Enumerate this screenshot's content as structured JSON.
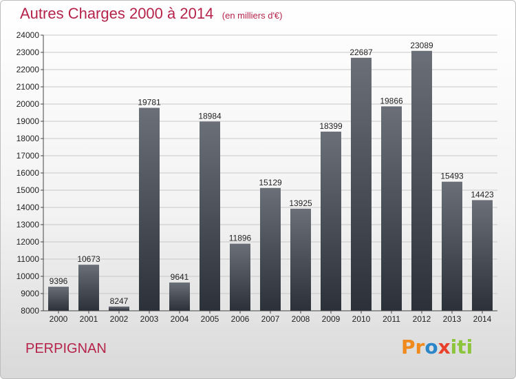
{
  "title": "Autres Charges 2000 à 2014",
  "unit": "(en milliers d'€)",
  "city": "PERPIGNAN",
  "logo": {
    "p1": "Pr",
    "p2": "o",
    "p3": "x",
    "p4": "iti"
  },
  "colors": {
    "title": "#b5234a",
    "bar_top": "#6a6f78",
    "bar_bottom": "#2c3038"
  },
  "chart_data": {
    "type": "bar",
    "title": "Autres Charges 2000 à 2014",
    "categories": [
      "2000",
      "2001",
      "2002",
      "2003",
      "2004",
      "2005",
      "2006",
      "2007",
      "2008",
      "2009",
      "2010",
      "2011",
      "2012",
      "2013",
      "2014"
    ],
    "values": [
      9396,
      10673,
      8247,
      19781,
      9641,
      18984,
      11896,
      15129,
      13925,
      18399,
      22687,
      19866,
      23089,
      15493,
      14423
    ],
    "ylim": [
      8000,
      24000
    ],
    "yticks": [
      8000,
      9000,
      10000,
      11000,
      12000,
      13000,
      14000,
      15000,
      16000,
      17000,
      18000,
      19000,
      20000,
      21000,
      22000,
      23000,
      24000
    ],
    "grid": true,
    "xlabel": "",
    "ylabel": ""
  }
}
